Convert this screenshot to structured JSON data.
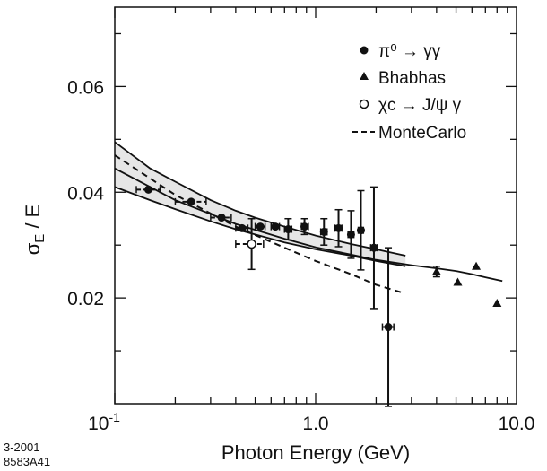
{
  "chart_data": {
    "type": "scatter",
    "xlabel": "Photon Energy (GeV)",
    "ylabel_main": "σ",
    "ylabel_sub": "E",
    "ylabel_rest": " / E",
    "xscale": "log",
    "xlim": [
      0.1,
      10.0
    ],
    "ylim": [
      0.0,
      0.075
    ],
    "xticks": [
      {
        "v": 0.1,
        "base": "10",
        "exp": "-1"
      },
      {
        "v": 1.0,
        "label": "1.0"
      },
      {
        "v": 10.0,
        "label": "10.0"
      }
    ],
    "yticks": [
      {
        "v": 0.02,
        "label": "0.02"
      },
      {
        "v": 0.04,
        "label": "0.04"
      },
      {
        "v": 0.06,
        "label": "0.06"
      }
    ],
    "legend": [
      {
        "marker": "filled-circle",
        "label": "π⁰ → γγ"
      },
      {
        "marker": "triangle",
        "label": "Bhabhas"
      },
      {
        "marker": "open-circle",
        "label": "χc → J/ψ γ"
      },
      {
        "marker": "dashed-line",
        "label": "MonteCarlo"
      }
    ],
    "series": [
      {
        "name": "pi0",
        "marker": "filled-circle",
        "points": [
          {
            "x": 0.147,
            "y": 0.0405,
            "xerr": [
              0.128,
              0.168
            ],
            "yerr": 0.0
          },
          {
            "x": 0.24,
            "y": 0.0382,
            "xerr": [
              0.2,
              0.285
            ],
            "yerr": 0.0
          },
          {
            "x": 0.34,
            "y": 0.0352,
            "xerr": [
              0.3,
              0.38
            ],
            "yerr": 0.0
          },
          {
            "x": 0.43,
            "y": 0.0332,
            "xerr": [
              0.4,
              0.46
            ],
            "yerr": 0.0
          },
          {
            "x": 0.53,
            "y": 0.0335,
            "xerr": [
              0.5,
              0.56
            ],
            "yerr": 0.0
          },
          {
            "x": 0.63,
            "y": 0.0335,
            "xerr": [
              0.6,
              0.66
            ],
            "yerr": 0.0
          },
          {
            "x": 0.73,
            "y": 0.033,
            "xerr": [
              0.7,
              0.76
            ],
            "yerr": 0.002
          },
          {
            "x": 0.88,
            "y": 0.0335,
            "xerr": [
              0.85,
              0.92
            ],
            "yerr": 0.0015
          },
          {
            "x": 1.1,
            "y": 0.0325,
            "xerr": [
              1.06,
              1.14
            ],
            "yerr": 0.0025
          },
          {
            "x": 1.3,
            "y": 0.0332,
            "xerr": [
              1.25,
              1.35
            ],
            "yerr": 0.0035
          },
          {
            "x": 1.5,
            "y": 0.032,
            "xerr": [
              1.45,
              1.55
            ],
            "yerr": 0.0045
          },
          {
            "x": 1.68,
            "y": 0.0328,
            "xerr": [
              1.63,
              1.73
            ],
            "yerr": 0.0075
          },
          {
            "x": 1.95,
            "y": 0.0295,
            "xerr": [
              1.88,
              2.02
            ],
            "yerr": 0.0115
          },
          {
            "x": 2.3,
            "y": 0.0145,
            "xerr": [
              2.15,
              2.45
            ],
            "yerr": 0.015
          }
        ]
      },
      {
        "name": "bhabhas",
        "marker": "triangle",
        "points": [
          {
            "x": 4.0,
            "y": 0.025,
            "yerr": 0.001
          },
          {
            "x": 5.1,
            "y": 0.023
          },
          {
            "x": 6.3,
            "y": 0.026
          },
          {
            "x": 8.0,
            "y": 0.019
          }
        ]
      },
      {
        "name": "chic",
        "marker": "open-circle",
        "points": [
          {
            "x": 0.48,
            "y": 0.0302,
            "xerr": [
              0.4,
              0.55
            ],
            "yerr": 0.0048
          }
        ]
      },
      {
        "name": "montecarlo",
        "style": "dashed",
        "x": [
          0.1,
          0.2,
          0.4,
          0.7,
          1.0,
          1.5,
          2.0,
          2.7
        ],
        "y": [
          0.047,
          0.0395,
          0.0335,
          0.0295,
          0.027,
          0.0245,
          0.0225,
          0.021
        ]
      }
    ],
    "fit_band": {
      "x": [
        0.1,
        0.15,
        0.2,
        0.3,
        0.4,
        0.5,
        0.7,
        1.0,
        1.5,
        2.0,
        2.8
      ],
      "upper": [
        0.0495,
        0.0445,
        0.042,
        0.0385,
        0.0365,
        0.0352,
        0.0335,
        0.0318,
        0.0302,
        0.0292,
        0.028
      ],
      "lower": [
        0.041,
        0.0385,
        0.0368,
        0.0345,
        0.033,
        0.032,
        0.0305,
        0.0292,
        0.028,
        0.027,
        0.026
      ]
    },
    "fit_central": {
      "x": [
        0.1,
        0.2,
        0.4,
        0.7,
        1.0,
        1.5,
        2.0,
        3.0,
        4.0,
        5.0,
        6.0,
        7.0,
        8.5
      ],
      "y": [
        0.0445,
        0.0385,
        0.034,
        0.0312,
        0.0296,
        0.0282,
        0.0272,
        0.0262,
        0.0256,
        0.0251,
        0.0245,
        0.0239,
        0.0232
      ]
    }
  },
  "figure_code": {
    "line1": "3-2001",
    "line2": "8583A41"
  }
}
